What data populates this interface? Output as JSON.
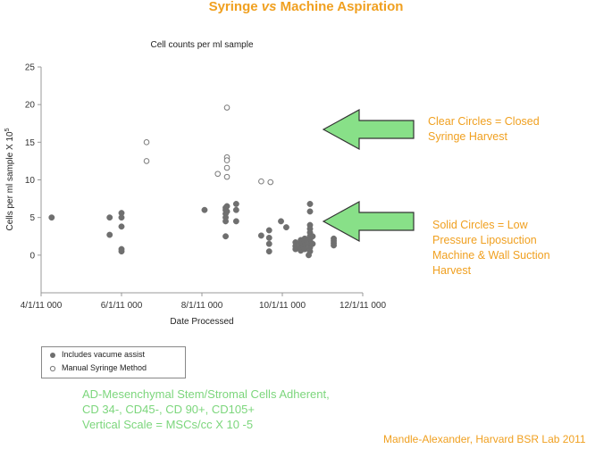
{
  "title": {
    "prefix": "Syringe ",
    "italic": "vs",
    "suffix": " Machine Aspiration"
  },
  "annotations": {
    "clear_circles": [
      "Clear Circles = Closed",
      "Syringe Harvest"
    ],
    "solid_circles": [
      "Solid Circles = Low",
      "Pressure Liposuction",
      "Machine & Wall Suction",
      "Harvest"
    ]
  },
  "footnote": [
    "AD-Mesenchymal Stem/Stromal Cells Adherent,",
    "CD 34-, CD45-, CD 90+, CD105+",
    "Vertical Scale = MSCs/cc X 10 -5"
  ],
  "credit": "Mandle-Alexander, Harvard BSR Lab 2011",
  "colors": {
    "accent_orange": "#f0a020",
    "arrow_fill": "#88e088",
    "footnote_green": "#7cd67c",
    "solid_marker": "#6f6f6f",
    "open_marker_stroke": "#7a7a7a"
  },
  "chart_data": {
    "type": "scatter",
    "title": "Cell counts per ml sample",
    "xlabel": "Date Processed",
    "ylabel": "Cells per ml sample X 10",
    "ylabel_superscript": "5",
    "ylim": [
      -5,
      25
    ],
    "yticks": [
      0,
      5,
      10,
      15,
      20,
      25
    ],
    "xlim": [
      "2011-04-01",
      "2011-12-01"
    ],
    "xticks": [
      "2011-04-01",
      "2011-06-01",
      "2011-08-01",
      "2011-10-01",
      "2011-12-01"
    ],
    "xtick_labels": [
      "4/1/11 000",
      "6/1/11 000",
      "8/1/11 000",
      "10/1/11 000",
      "12/1/11 000"
    ],
    "grid": false,
    "legend": {
      "placement": "below",
      "entries": [
        "Includes vacume assist",
        "Manual Syringe Method"
      ]
    },
    "series": [
      {
        "name": "Includes vacume assist",
        "marker": "filled-circle",
        "points": [
          [
            "2011-04-09",
            5.0
          ],
          [
            "2011-05-23",
            5.0
          ],
          [
            "2011-05-23",
            2.7
          ],
          [
            "2011-06-01",
            5.6
          ],
          [
            "2011-06-01",
            5.0
          ],
          [
            "2011-06-01",
            3.8
          ],
          [
            "2011-06-01",
            0.8
          ],
          [
            "2011-06-01",
            0.5
          ],
          [
            "2011-08-03",
            6.0
          ],
          [
            "2011-08-19",
            6.3
          ],
          [
            "2011-08-19",
            6.0
          ],
          [
            "2011-08-19",
            5.5
          ],
          [
            "2011-08-19",
            5.0
          ],
          [
            "2011-08-19",
            4.5
          ],
          [
            "2011-08-19",
            2.5
          ],
          [
            "2011-08-20",
            6.5
          ],
          [
            "2011-08-20",
            5.8
          ],
          [
            "2011-08-27",
            6.8
          ],
          [
            "2011-08-27",
            6.0
          ],
          [
            "2011-08-27",
            4.5
          ],
          [
            "2011-09-15",
            2.6
          ],
          [
            "2011-09-21",
            3.3
          ],
          [
            "2011-09-21",
            2.3
          ],
          [
            "2011-09-21",
            1.5
          ],
          [
            "2011-09-21",
            0.5
          ],
          [
            "2011-09-30",
            4.5
          ],
          [
            "2011-10-04",
            3.7
          ],
          [
            "2011-10-11",
            1.7
          ],
          [
            "2011-10-11",
            1.2
          ],
          [
            "2011-10-11",
            0.8
          ],
          [
            "2011-10-15",
            2.0
          ],
          [
            "2011-10-15",
            1.5
          ],
          [
            "2011-10-15",
            1.0
          ],
          [
            "2011-10-15",
            0.6
          ],
          [
            "2011-10-18",
            2.2
          ],
          [
            "2011-10-18",
            1.8
          ],
          [
            "2011-10-18",
            1.3
          ],
          [
            "2011-10-18",
            0.8
          ],
          [
            "2011-10-21",
            0.0
          ],
          [
            "2011-10-22",
            6.8
          ],
          [
            "2011-10-22",
            5.8
          ],
          [
            "2011-10-22",
            4.0
          ],
          [
            "2011-10-22",
            3.5
          ],
          [
            "2011-10-22",
            3.0
          ],
          [
            "2011-10-22",
            2.5
          ],
          [
            "2011-10-22",
            2.0
          ],
          [
            "2011-10-22",
            1.5
          ],
          [
            "2011-10-22",
            1.0
          ],
          [
            "2011-10-22",
            0.5
          ],
          [
            "2011-10-24",
            2.5
          ],
          [
            "2011-10-24",
            1.5
          ],
          [
            "2011-11-09",
            2.2
          ],
          [
            "2011-11-09",
            1.9
          ],
          [
            "2011-11-09",
            1.6
          ],
          [
            "2011-11-09",
            1.3
          ]
        ]
      },
      {
        "name": "Manual Syringe Method",
        "marker": "open-circle",
        "points": [
          [
            "2011-06-20",
            15.0
          ],
          [
            "2011-06-20",
            12.5
          ],
          [
            "2011-08-13",
            10.8
          ],
          [
            "2011-08-20",
            19.6
          ],
          [
            "2011-08-20",
            13.0
          ],
          [
            "2011-08-20",
            12.6
          ],
          [
            "2011-08-20",
            11.6
          ],
          [
            "2011-08-20",
            10.4
          ],
          [
            "2011-09-15",
            9.8
          ],
          [
            "2011-09-22",
            9.7
          ]
        ]
      }
    ]
  }
}
